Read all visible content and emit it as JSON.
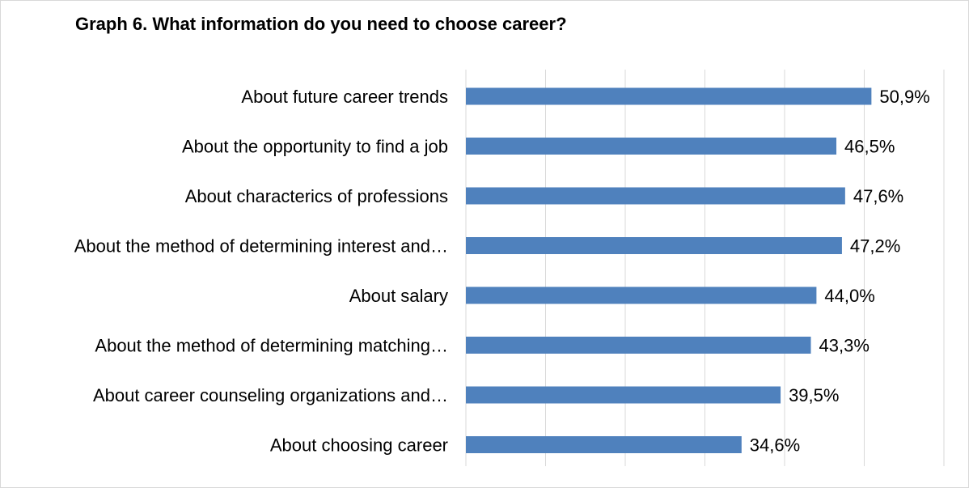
{
  "chart_data": {
    "type": "bar",
    "orientation": "horizontal",
    "title": "Graph 6. What information do you need to choose career?",
    "xlabel": "",
    "ylabel": "",
    "categories": [
      "About future career trends",
      "About the opportunity to find a job",
      "About characterics of professions",
      "About the method of determining interest and…",
      "About salary",
      "About the method of determining matching…",
      "About career counseling organizations and…",
      "About choosing career"
    ],
    "values": [
      50.9,
      46.5,
      47.6,
      47.2,
      44.0,
      43.3,
      39.5,
      34.6
    ],
    "value_labels": [
      "50,9%",
      "46,5%",
      "47,6%",
      "47,2%",
      "44,0%",
      "43,3%",
      "39,5%",
      "34,6%"
    ],
    "xlim": [
      0,
      60
    ],
    "grid": true,
    "bar_color": "#4f81bd",
    "grid_color": "#d9d9d9"
  }
}
